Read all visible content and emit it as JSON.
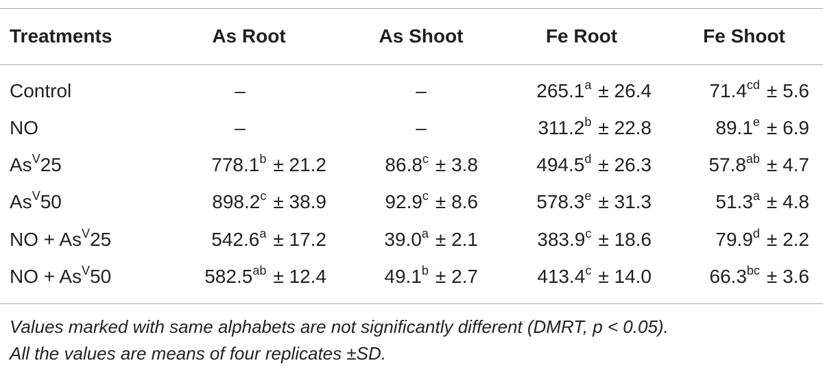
{
  "table": {
    "header": [
      "Treatments",
      "As Root",
      "As Shoot",
      "Fe Root",
      "Fe Shoot"
    ],
    "rows": [
      [
        {
          "text": "Control"
        },
        "–",
        "–",
        {
          "mean": "265.1",
          "letter": "a",
          "sd": "± 26.4"
        },
        {
          "mean": "71.4",
          "letter": "cd",
          "sd": "± 5.6"
        }
      ],
      [
        {
          "text": "NO"
        },
        "–",
        "–",
        {
          "mean": "311.2",
          "letter": "b",
          "sd": "± 22.8"
        },
        {
          "mean": "89.1",
          "letter": "e",
          "sd": "± 6.9"
        }
      ],
      [
        {
          "text": "As",
          "sup": "V",
          "after": "25"
        },
        {
          "mean": "778.1",
          "letter": "b",
          "sd": "± 21.2"
        },
        {
          "mean": "86.8",
          "letter": "c",
          "sd": "± 3.8"
        },
        {
          "mean": "494.5",
          "letter": "d",
          "sd": "± 26.3"
        },
        {
          "mean": "57.8",
          "letter": "ab",
          "sd": "± 4.7"
        }
      ],
      [
        {
          "text": "As",
          "sup": "V",
          "after": "50"
        },
        {
          "mean": "898.2",
          "letter": "c",
          "sd": "± 38.9"
        },
        {
          "mean": "92.9",
          "letter": "c",
          "sd": "± 8.6"
        },
        {
          "mean": "578.3",
          "letter": "e",
          "sd": "± 31.3"
        },
        {
          "mean": "51.3",
          "letter": "a",
          "sd": "± 4.8"
        }
      ],
      [
        {
          "text": "NO + As",
          "sup": "V",
          "after": "25"
        },
        {
          "mean": "542.6",
          "letter": "a",
          "sd": "± 17.2"
        },
        {
          "mean": "39.0",
          "letter": "a",
          "sd": "± 2.1"
        },
        {
          "mean": "383.9",
          "letter": "c",
          "sd": "± 18.6"
        },
        {
          "mean": "79.9",
          "letter": "d",
          "sd": "± 2.2"
        }
      ],
      [
        {
          "text": "NO + As",
          "sup": "V",
          "after": "50"
        },
        {
          "mean": "582.5",
          "letter": "ab",
          "sd": "± 12.4"
        },
        {
          "mean": "49.1",
          "letter": "b",
          "sd": "± 2.7"
        },
        {
          "mean": "413.4",
          "letter": "c",
          "sd": "± 14.0"
        },
        {
          "mean": "66.3",
          "letter": "bc",
          "sd": "± 3.6"
        }
      ]
    ],
    "footnote": [
      "Values marked with same alphabets are not significantly different (DMRT, p < 0.05).",
      "All the values are means of four replicates ±SD."
    ]
  }
}
